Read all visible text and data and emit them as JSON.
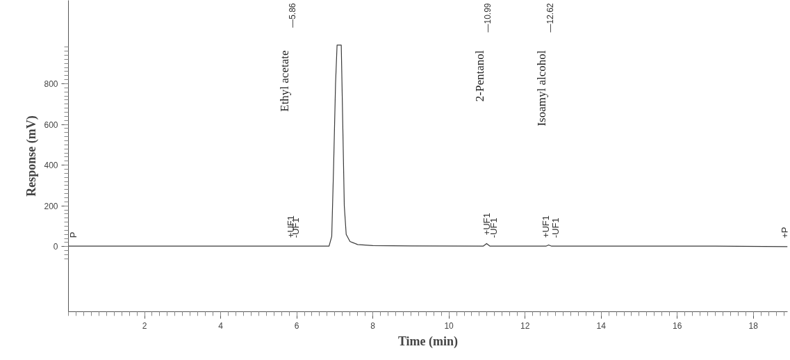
{
  "chart_data": {
    "type": "line",
    "xlabel": "Time (min)",
    "ylabel": "Response (mV)",
    "series": [
      {
        "color": "#3a3a3a",
        "x": [
          0,
          3,
          5.84,
          5.86,
          5.98,
          6.85,
          6.92,
          6.97,
          7.02,
          7.06,
          7.17,
          7.21,
          7.25,
          7.3,
          7.4,
          7.6,
          8.0,
          9.0,
          10.9,
          10.99,
          11.08,
          11.18,
          12.55,
          12.62,
          12.7,
          12.8,
          15,
          17,
          18.9
        ],
        "values": [
          2,
          2,
          2,
          2,
          2,
          2,
          50,
          400,
          800,
          990,
          990,
          600,
          200,
          60,
          25,
          10,
          5,
          3,
          2,
          15,
          2,
          2,
          2,
          8,
          2,
          2,
          2,
          2,
          0
        ]
      }
    ],
    "xlim": [
      0,
      18.9
    ],
    "ylim": [
      -320,
      1210
    ],
    "xticks": [
      2,
      4,
      6,
      8,
      10,
      12,
      14,
      16,
      18
    ],
    "yticks": [
      0,
      200,
      400,
      600,
      800
    ],
    "grid": false,
    "marker": "none",
    "line_style": "solid",
    "annotations": [
      "Ethyl acetate",
      "—5.86",
      "2-Pentanol",
      "—10.99",
      "Isoamyl alcohol",
      "—12.62",
      {
        "text": "+UF1",
        "x": 5.84,
        "y": 2
      },
      {
        "text": "-UF1",
        "x": 5.98,
        "y": 2
      },
      {
        "text": "+UF1",
        "x": 10.99,
        "y": 15
      },
      {
        "text": "-UF1",
        "x": 11.18,
        "y": 2
      },
      {
        "text": "+UF1",
        "x": 12.55,
        "y": 2
      },
      {
        "text": "-UF1",
        "x": 12.8,
        "y": 2
      },
      {
        "text": "P",
        "x": 0,
        "y": 2
      },
      {
        "text": "+P",
        "x": 18.9,
        "y": 0
      }
    ]
  }
}
